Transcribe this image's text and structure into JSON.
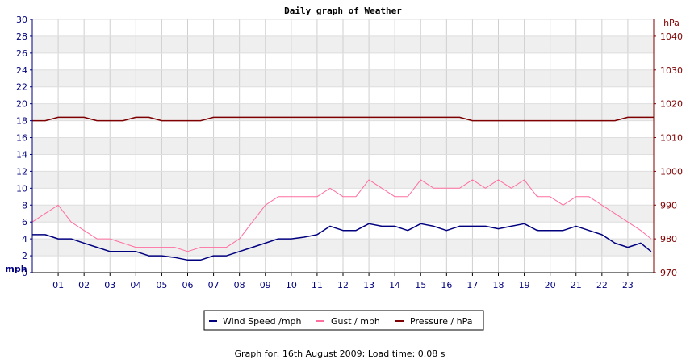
{
  "chart_data": {
    "type": "line",
    "title": "Daily graph of Weather",
    "left_axis": {
      "unit": "mph",
      "ylim": [
        0,
        30
      ],
      "ticks": [
        "0",
        "2",
        "4",
        "6",
        "8",
        "10",
        "12",
        "14",
        "16",
        "18",
        "20",
        "22",
        "24",
        "26",
        "28",
        "30"
      ],
      "color": "#00007f"
    },
    "right_axis": {
      "unit": "hPa",
      "ylim": [
        970,
        1045
      ],
      "ticks": [
        "970",
        "980",
        "990",
        "1000",
        "1010",
        "1020",
        "1030",
        "1040"
      ],
      "color": "#7f0000"
    },
    "x_axis": {
      "xlim": [
        0,
        24
      ],
      "hour_labels": [
        "01",
        "02",
        "03",
        "04",
        "05",
        "06",
        "07",
        "08",
        "09",
        "10",
        "11",
        "12",
        "13",
        "14",
        "15",
        "16",
        "17",
        "18",
        "19",
        "20",
        "21",
        "22",
        "23"
      ]
    },
    "grid": true,
    "series": [
      {
        "name": "Wind Speed /mph",
        "axis": "left",
        "color": "#00007f",
        "x": [
          0,
          0.5,
          1,
          1.5,
          2,
          2.5,
          3,
          3.5,
          4,
          4.5,
          5,
          5.5,
          6,
          6.5,
          7,
          7.5,
          8,
          8.5,
          9,
          9.5,
          10,
          10.5,
          11,
          11.5,
          12,
          12.5,
          13,
          13.5,
          14,
          14.5,
          15,
          15.5,
          16,
          16.5,
          17,
          17.5,
          18,
          18.5,
          19,
          19.5,
          20,
          20.5,
          21,
          21.5,
          22,
          22.5,
          23,
          23.5,
          23.9
        ],
        "values": [
          4.5,
          4.5,
          4,
          4,
          3.5,
          3,
          2.5,
          2.5,
          2.5,
          2,
          2,
          1.8,
          1.5,
          1.5,
          2,
          2,
          2.5,
          3,
          3.5,
          4,
          4,
          4.2,
          4.5,
          5.5,
          5,
          5,
          5.8,
          5.5,
          5.5,
          5,
          5.8,
          5.5,
          5,
          5.5,
          5.5,
          5.5,
          5.2,
          5.5,
          5.8,
          5,
          5,
          5,
          5.5,
          5,
          4.5,
          3.5,
          3,
          3.5,
          2.5
        ]
      },
      {
        "name": "Gust / mph",
        "axis": "left",
        "color": "#ff6ea0",
        "x": [
          0,
          0.5,
          1,
          1.5,
          2,
          2.5,
          3,
          3.5,
          4,
          4.5,
          5,
          5.5,
          6,
          6.5,
          7,
          7.5,
          8,
          8.5,
          9,
          9.5,
          10,
          10.5,
          11,
          11.5,
          12,
          12.5,
          13,
          13.5,
          14,
          14.5,
          15,
          15.5,
          16,
          16.5,
          17,
          17.5,
          18,
          18.5,
          19,
          19.5,
          20,
          20.5,
          21,
          21.5,
          22,
          22.5,
          23,
          23.5,
          23.9
        ],
        "values": [
          6,
          7,
          8,
          6,
          5,
          4,
          4,
          3.5,
          3,
          3,
          3,
          3,
          2.5,
          3,
          3,
          3,
          4,
          6,
          8,
          9,
          9,
          9,
          9,
          10,
          9,
          9,
          11,
          10,
          9,
          9,
          11,
          10,
          10,
          10,
          11,
          10,
          11,
          10,
          11,
          9,
          9,
          8,
          9,
          9,
          8,
          7,
          6,
          5,
          4
        ]
      },
      {
        "name": "Pressure / hPa",
        "axis": "right",
        "color": "#7f0000",
        "x": [
          0,
          0.5,
          1,
          1.5,
          2,
          2.5,
          3,
          3.5,
          4,
          4.5,
          5,
          5.5,
          6,
          6.5,
          7,
          7.5,
          8,
          8.5,
          9,
          9.5,
          10,
          10.5,
          11,
          11.5,
          12,
          12.5,
          13,
          13.5,
          14,
          14.5,
          15,
          15.5,
          16,
          16.5,
          17,
          17.5,
          18,
          18.5,
          19,
          19.5,
          20,
          20.5,
          21,
          21.5,
          22,
          22.5,
          23,
          23.5,
          24
        ],
        "values": [
          1015,
          1015,
          1016,
          1016,
          1016,
          1015,
          1015,
          1015,
          1016,
          1016,
          1015,
          1015,
          1015,
          1015,
          1016,
          1016,
          1016,
          1016,
          1016,
          1016,
          1016,
          1016,
          1016,
          1016,
          1016,
          1016,
          1016,
          1016,
          1016,
          1016,
          1016,
          1016,
          1016,
          1016,
          1015,
          1015,
          1015,
          1015,
          1015,
          1015,
          1015,
          1015,
          1015,
          1015,
          1015,
          1015,
          1016,
          1016,
          1016
        ]
      }
    ],
    "legend_position": "bottom-center",
    "footer": "Graph for: 16th August 2009; Load time: 0.08 s"
  }
}
